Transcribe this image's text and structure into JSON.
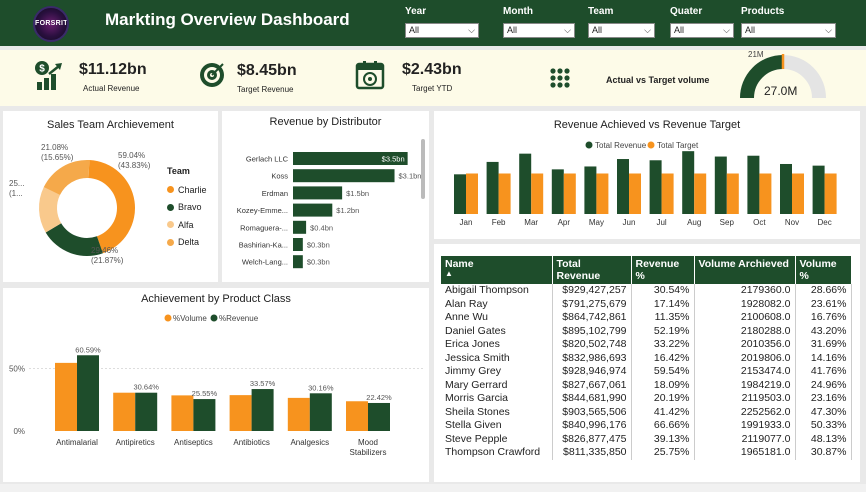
{
  "header": {
    "logo_text": "FORSRIT",
    "title": "Markting Overview Dashboard",
    "filters": [
      {
        "label": "Year",
        "value": "All"
      },
      {
        "label": "Month",
        "value": "All"
      },
      {
        "label": "Team",
        "value": "All"
      },
      {
        "label": "Quater",
        "value": "All"
      },
      {
        "label": "Products",
        "value": "All"
      }
    ]
  },
  "kpis": {
    "actual_revenue": {
      "value": "$11.12bn",
      "label": "Actual Revenue",
      "icon": "money-growth-icon"
    },
    "target_revenue": {
      "value": "$8.45bn",
      "label": "Target Revenue",
      "icon": "target-icon"
    },
    "target_ytd": {
      "value": "$2.43bn",
      "label": "Target YTD",
      "icon": "calendar-target-icon"
    },
    "gauge": {
      "label": "Actual vs Target volume",
      "value": "27.0M",
      "max_label": "21M",
      "fraction": 0.5,
      "icon": "grid-dots-icon"
    }
  },
  "sales_team": {
    "title": "Sales Team Archievement",
    "legend_title": "Team",
    "chart_data": {
      "type": "pie",
      "categories": [
        "Charlie",
        "Bravo",
        "Alfa",
        "Delta"
      ],
      "values": [
        43.83,
        21.87,
        15.65,
        18.65
      ],
      "colors": [
        "#f7931e",
        "#1e4d2b",
        "#f9c98c",
        "#f5a94a"
      ],
      "labels": [
        {
          "line1": "59.04%",
          "line2": "(43.83%)"
        },
        {
          "line1": "29.46%",
          "line2": "(21.87%)"
        },
        {
          "line1": "21.08%",
          "line2": "(15.65%)"
        },
        {
          "line1": "25...",
          "line2": "(1..."
        }
      ]
    }
  },
  "distributor": {
    "title": "Revenue by Distributor",
    "chart_data": {
      "type": "bar",
      "categories": [
        "Gerlach LLC",
        "Koss",
        "Erdman",
        "Kozey-Emme...",
        "Romaguera-...",
        "Bashirian-Ka...",
        "Welch-Lang..."
      ],
      "values": [
        3.5,
        3.1,
        1.5,
        1.2,
        0.4,
        0.3,
        0.3
      ],
      "labels": [
        "$3.5bn",
        "$3.1bn",
        "$1.5bn",
        "$1.2bn",
        "$0.4bn",
        "$0.3bn",
        "$0.3bn"
      ],
      "xlim": [
        0,
        4
      ]
    }
  },
  "revenue_target": {
    "title": "Revenue Achieved vs Revenue Target",
    "chart_data": {
      "type": "bar",
      "categories": [
        "Jan",
        "Feb",
        "Mar",
        "Apr",
        "May",
        "Jun",
        "Jul",
        "Aug",
        "Sep",
        "Oct",
        "Nov",
        "Dec"
      ],
      "series": [
        {
          "name": "Total Revenue",
          "color": "#1e4d2b",
          "values": [
            0.96,
            1.26,
            1.46,
            1.08,
            1.15,
            1.33,
            1.3,
            1.52,
            1.39,
            1.41,
            1.21,
            1.17
          ]
        },
        {
          "name": "Total Target",
          "color": "#f7931e",
          "values": [
            0.98,
            0.98,
            0.98,
            0.98,
            0.98,
            0.98,
            0.98,
            0.98,
            0.98,
            0.98,
            0.98,
            0.98
          ]
        }
      ],
      "ylim": [
        0,
        1.8
      ]
    }
  },
  "product_class": {
    "title": "Achievement by Product Class",
    "chart_data": {
      "type": "bar",
      "categories": [
        "Antimalarial",
        "Antipiretics",
        "Antiseptics",
        "Antibiotics",
        "Analgesics",
        "Mood Stabilizers"
      ],
      "series": [
        {
          "name": "%Volume",
          "color": "#f7931e",
          "values": [
            54.5,
            30.64,
            28.5,
            28.7,
            26.5,
            23.8
          ]
        },
        {
          "name": "%Revenue",
          "color": "#1e4d2b",
          "values": [
            60.59,
            30.64,
            25.55,
            33.57,
            30.16,
            22.42
          ]
        }
      ],
      "data_labels": [
        "60.59%",
        "30.64%",
        "25.55%",
        "33.57%",
        "30.16%",
        "22.42%"
      ],
      "yticks": [
        "50%",
        "0%"
      ],
      "ylim": [
        0,
        80
      ]
    }
  },
  "table": {
    "columns": [
      "Name",
      "Total Revenue",
      "Revenue %",
      "Volume Archieved",
      "Volume %"
    ],
    "rows": [
      [
        "Abigail Thompson",
        "$929,427,257",
        "30.54%",
        "2179360.0",
        "28.66%"
      ],
      [
        "Alan Ray",
        "$791,275,679",
        "17.14%",
        "1928082.0",
        "23.61%"
      ],
      [
        "Anne Wu",
        "$864,742,861",
        "11.35%",
        "2100608.0",
        "16.76%"
      ],
      [
        "Daniel Gates",
        "$895,102,799",
        "52.19%",
        "2180288.0",
        "43.20%"
      ],
      [
        "Erica Jones",
        "$820,502,748",
        "33.22%",
        "2010356.0",
        "31.69%"
      ],
      [
        "Jessica Smith",
        "$832,986,693",
        "16.42%",
        "2019806.0",
        "14.16%"
      ],
      [
        "Jimmy Grey",
        "$928,946,974",
        "59.54%",
        "2153474.0",
        "41.76%"
      ],
      [
        "Mary Gerrard",
        "$827,667,061",
        "18.09%",
        "1984219.0",
        "24.96%"
      ],
      [
        "Morris Garcia",
        "$844,681,990",
        "20.19%",
        "2119503.0",
        "23.16%"
      ],
      [
        "Sheila Stones",
        "$903,565,506",
        "41.42%",
        "2252562.0",
        "47.30%"
      ],
      [
        "Stella Given",
        "$840,996,176",
        "66.66%",
        "1991933.0",
        "50.33%"
      ],
      [
        "Steve Pepple",
        "$826,877,475",
        "39.13%",
        "2119077.0",
        "48.13%"
      ],
      [
        "Thompson Crawford",
        "$811,335,850",
        "25.75%",
        "1965181.0",
        "30.87%"
      ]
    ]
  },
  "colors": {
    "brand_green": "#1e4d2b",
    "accent_orange": "#f7931e",
    "kpi_bg": "#fdfbe8"
  }
}
